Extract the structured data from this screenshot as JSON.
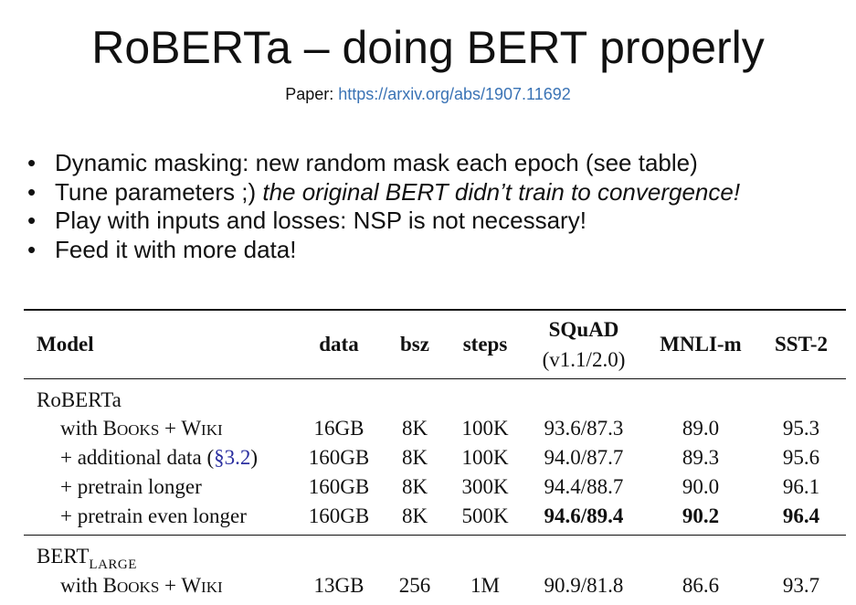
{
  "slide": {
    "title": "RoBERTa – doing BERT properly",
    "paper_label": "Paper: ",
    "paper_link": "https://arxiv.org/abs/1907.11692",
    "bullets": [
      {
        "text": "Dynamic masking: new random mask each epoch (see table)",
        "italic": ""
      },
      {
        "text": "Tune parameters ;) ",
        "italic": "the original BERT didn’t train to convergence!"
      },
      {
        "text": "Play with inputs and losses: NSP is not necessary!",
        "italic": ""
      },
      {
        "text": "Feed it with more data!",
        "italic": ""
      }
    ]
  },
  "table": {
    "headers": {
      "model": "Model",
      "data": "data",
      "bsz": "bsz",
      "steps": "steps",
      "squad": "SQuAD",
      "squad_sub": "(v1.1/2.0)",
      "mnli": "MNLI-m",
      "sst": "SST-2"
    },
    "group1": {
      "label": "RoBERTa",
      "rows": [
        {
          "model": "with Books + Wiki",
          "data": "16GB",
          "bsz": "8K",
          "steps": "100K",
          "squad": "93.6/87.3",
          "mnli": "89.0",
          "sst": "95.3"
        },
        {
          "model": "+ additional data (§3.2)",
          "data": "160GB",
          "bsz": "8K",
          "steps": "100K",
          "squad": "94.0/87.7",
          "mnli": "89.3",
          "sst": "95.6"
        },
        {
          "model": "+ pretrain longer",
          "data": "160GB",
          "bsz": "8K",
          "steps": "300K",
          "squad": "94.4/88.7",
          "mnli": "90.0",
          "sst": "96.1"
        },
        {
          "model": "+ pretrain even longer",
          "data": "160GB",
          "bsz": "8K",
          "steps": "500K",
          "squad": "94.6/89.4",
          "mnli": "90.2",
          "sst": "96.4"
        }
      ]
    },
    "group2": {
      "label": "BERT",
      "label_sub": "LARGE",
      "rows": [
        {
          "model": "with Books + Wiki",
          "data": "13GB",
          "bsz": "256",
          "steps": "1M",
          "squad": "90.9/81.8",
          "mnli": "86.6",
          "sst": "93.7"
        }
      ]
    }
  }
}
